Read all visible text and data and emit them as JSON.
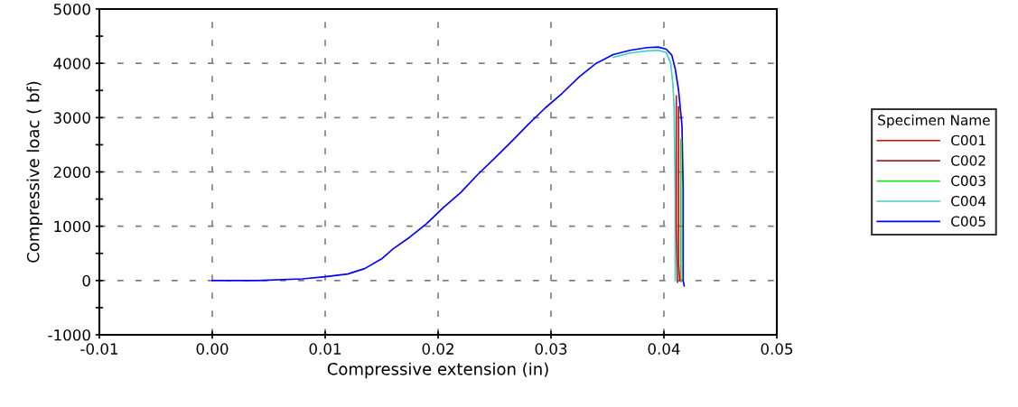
{
  "chart_data": {
    "type": "line",
    "xlabel": "Compressive extension (in)",
    "ylabel": "Compressive loac ( bf)",
    "legend_title": "Specimen Name",
    "legend": "right",
    "grid": true,
    "line_style": "solid",
    "xlim": [
      -0.01,
      0.05
    ],
    "xticks": [
      {
        "value": -0.01,
        "label": "-0.01"
      },
      {
        "value": 0,
        "label": "0.00"
      },
      {
        "value": 0.01,
        "label": "0.01"
      },
      {
        "value": 0.02,
        "label": "0.02"
      },
      {
        "value": 0.03,
        "label": "0.03"
      },
      {
        "value": 0.04,
        "label": "0.04"
      },
      {
        "value": 0.05,
        "label": "0.05"
      }
    ],
    "ylim": [
      -1000,
      5000
    ],
    "yticks": [
      -1000,
      {
        "value": -500,
        "label": null
      },
      0,
      {
        "value": 500,
        "label": null
      },
      1000,
      {
        "value": 1500,
        "label": null
      },
      2000,
      {
        "value": 2500,
        "label": null
      },
      3000,
      {
        "value": 3500,
        "label": null
      },
      4000,
      {
        "value": 4500,
        "label": null
      },
      5000
    ],
    "series": [
      {
        "name": "C001",
        "color": "#e00000",
        "x": [
          0.0413,
          0.0413,
          0.0414
        ],
        "values": [
          3200,
          300,
          0
        ]
      },
      {
        "name": "C002",
        "color": "#a0282a",
        "x": [
          0.0411,
          0.0411,
          0.0412
        ],
        "values": [
          3400,
          1000,
          -30
        ]
      },
      {
        "name": "C003",
        "color": "#20e020",
        "x": [
          0.0415,
          0.0415
        ],
        "values": [
          2600,
          -20
        ]
      },
      {
        "name": "C004",
        "color": "#40d0c8",
        "x": [
          0.0355,
          0.037,
          0.0385,
          0.0395,
          0.0402,
          0.0406,
          0.0408,
          0.0409,
          0.041,
          0.041
        ],
        "values": [
          4110,
          4190,
          4230,
          4240,
          4200,
          4000,
          3600,
          3200,
          1500,
          0
        ]
      },
      {
        "name": "C005",
        "color": "#0000ff",
        "x": [
          0,
          0.004,
          0.008,
          0.01,
          0.012,
          0.0135,
          0.015,
          0.016,
          0.0175,
          0.019,
          0.0205,
          0.022,
          0.0235,
          0.025,
          0.0265,
          0.028,
          0.0295,
          0.031,
          0.0325,
          0.034,
          0.0355,
          0.037,
          0.0385,
          0.0395,
          0.0402,
          0.0407,
          0.041,
          0.0413,
          0.0416,
          0.0417,
          0.0417,
          0.0418
        ],
        "values": [
          0,
          0,
          30,
          70,
          120,
          220,
          400,
          580,
          800,
          1050,
          1350,
          1620,
          1950,
          2250,
          2560,
          2880,
          3180,
          3450,
          3750,
          4000,
          4160,
          4240,
          4290,
          4300,
          4260,
          4150,
          3900,
          3500,
          2850,
          1700,
          0,
          -100
        ]
      }
    ]
  }
}
